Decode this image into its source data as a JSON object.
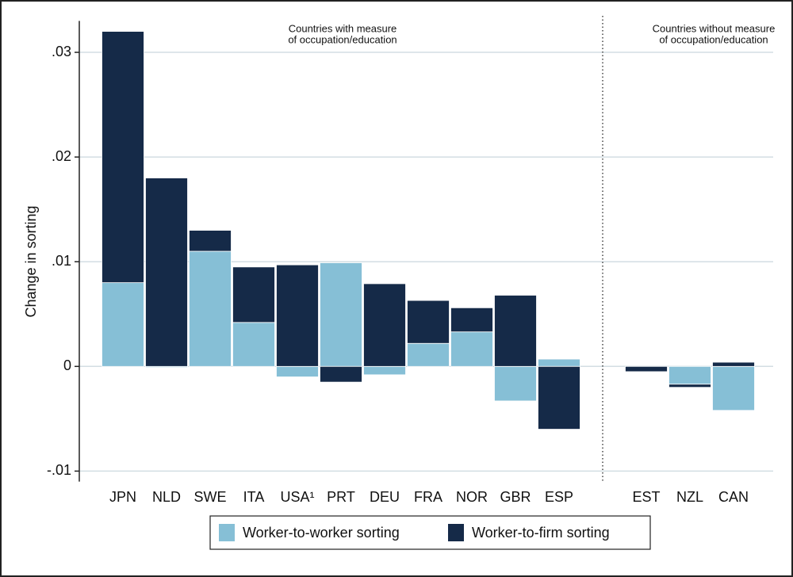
{
  "chart_data": {
    "type": "bar",
    "stacked": true,
    "grid": true,
    "y_label": "Change in sorting",
    "categories": [
      "JPN",
      "NLD",
      "SWE",
      "ITA",
      "USA¹",
      "PRT",
      "DEU",
      "FRA",
      "NOR",
      "GBR",
      "ESP",
      null,
      "EST",
      "NZL",
      "CAN"
    ],
    "series": [
      {
        "name": "Worker-to-worker sorting",
        "color": "#86bfd6",
        "values": [
          0.008,
          -0.0001,
          0.011,
          0.0042,
          -0.001,
          0.0099,
          -0.0008,
          0.0022,
          0.0033,
          -0.0033,
          0.0007,
          null,
          0,
          -0.0017,
          -0.0042
        ]
      },
      {
        "name": "Worker-to-firm sorting",
        "color": "#152a48",
        "values": [
          0.024,
          0.018,
          0.002,
          0.0053,
          0.0097,
          -0.0015,
          0.0079,
          0.0041,
          0.0023,
          0.0068,
          -0.006,
          null,
          -0.0005,
          -0.0003,
          0.0004
        ]
      }
    ],
    "ylim": [
      -0.011,
      0.033
    ],
    "yticks": [
      {
        "value": -0.01,
        "label": "-.01"
      },
      0,
      {
        "value": 0.01,
        "label": ".01"
      },
      {
        "value": 0.02,
        "label": ".02"
      },
      {
        "value": 0.03,
        "label": ".03"
      }
    ],
    "annotations": [
      {
        "lines": [
          "Countries with measure",
          "of occupation/education"
        ]
      },
      {
        "lines": [
          "Countries without measure",
          "of occupation/education"
        ]
      }
    ]
  }
}
